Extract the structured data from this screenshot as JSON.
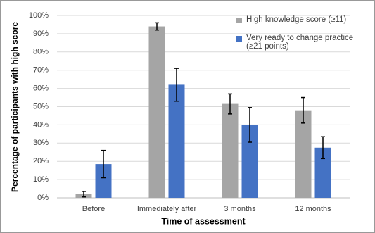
{
  "chart_data": {
    "type": "bar",
    "y_label": "Percentage of participants with high score",
    "x_label": "Time of assessment",
    "categories": [
      "Before",
      "Immediately after",
      "3 months",
      "12 months"
    ],
    "series": [
      {
        "name": "High knowledge score (≥11)",
        "color": "#a5a5a5",
        "values": [
          2,
          94,
          51.5,
          48
        ],
        "errors": [
          1.5,
          2,
          5.5,
          7
        ]
      },
      {
        "name": "Very ready to change practice (≥21 points)",
        "color": "#4472c4",
        "values": [
          18.5,
          62,
          40,
          27.5
        ],
        "errors": [
          7.5,
          9,
          9.5,
          6
        ]
      }
    ],
    "ylim": [
      0,
      100
    ],
    "yticks": [
      {
        "value": 0,
        "label": "0%"
      },
      {
        "value": 10,
        "label": "10%"
      },
      {
        "value": 20,
        "label": "20%"
      },
      {
        "value": 30,
        "label": "30%"
      },
      {
        "value": 40,
        "label": "40%"
      },
      {
        "value": 50,
        "label": "50%"
      },
      {
        "value": 60,
        "label": "60%"
      },
      {
        "value": 70,
        "label": "70%"
      },
      {
        "value": 80,
        "label": "80%"
      },
      {
        "value": 90,
        "label": "90%"
      },
      {
        "value": 100,
        "label": "100%"
      }
    ],
    "grid": true
  }
}
